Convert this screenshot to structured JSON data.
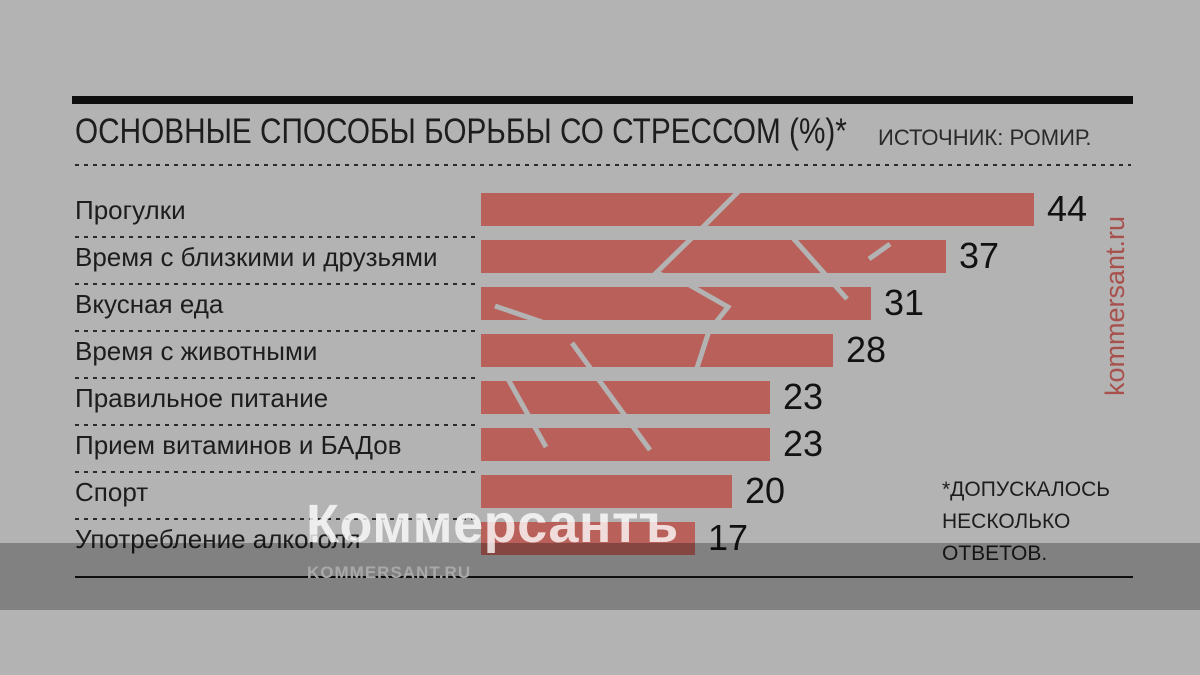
{
  "page": {
    "background_color": "#b3b3b3",
    "band_overlay_color": "rgba(0,0,0,0.28)",
    "rule_color": "#0e0e0e"
  },
  "chart_data": {
    "type": "bar",
    "orientation": "horizontal",
    "title": "ОСНОВНЫЕ СПОСОБЫ БОРЬБЫ СО СТРЕССОМ (%)*",
    "source": "ИСТОЧНИК: РОМИР.",
    "footnote": "*ДОПУСКАЛОСЬ НЕСКОЛЬКО ОТВЕТОВ.",
    "unit": "%",
    "categories": [
      "Прогулки",
      "Время с близкими и друзьями",
      "Вкусная еда",
      "Время с животными",
      "Правильное питание",
      "Прием витаминов и БАДов",
      "Спорт",
      "Употребление алкоголя"
    ],
    "values": [
      44,
      37,
      31,
      28,
      23,
      23,
      20,
      17
    ],
    "xlim": [
      0,
      47
    ],
    "grid": false,
    "legend": false,
    "bar_color": "#b9605a",
    "value_label_position": "end-of-bar"
  },
  "branding": {
    "watermark_center": "Коммерсантъ",
    "watermark_bottom": "KOMMERSANT.RU",
    "watermark_side": "kommersant.ru",
    "watermark_accent_color": "#a8504c"
  }
}
